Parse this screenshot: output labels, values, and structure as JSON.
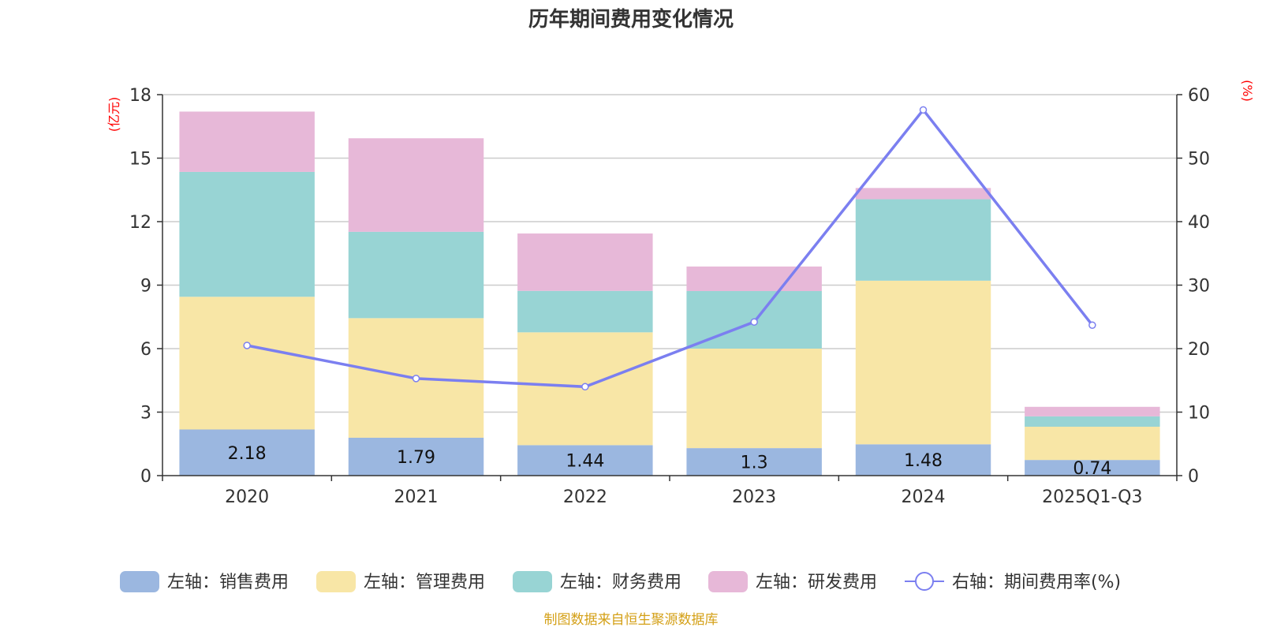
{
  "chart_data": {
    "type": "bar",
    "title": "历年期间费用变化情况",
    "categories": [
      "2020",
      "2021",
      "2022",
      "2023",
      "2024",
      "2025Q1-Q3"
    ],
    "left_axis": {
      "unit": "(亿元)",
      "ylim": [
        0,
        18
      ],
      "ticks": [
        0,
        3,
        6,
        9,
        12,
        15,
        18
      ]
    },
    "right_axis": {
      "unit": "(%)",
      "ylim": [
        0,
        60
      ],
      "ticks": [
        0,
        10,
        20,
        30,
        40,
        50,
        60
      ]
    },
    "series": [
      {
        "name": "左轴：销售费用",
        "kind": "bar",
        "color": "#9bb7e0",
        "values": [
          2.18,
          1.79,
          1.44,
          1.3,
          1.48,
          0.74
        ],
        "labels": [
          "2.18",
          "1.79",
          "1.44",
          "1.3",
          "1.48",
          "0.74"
        ]
      },
      {
        "name": "左轴：管理费用",
        "kind": "bar",
        "color": "#f8e6a6",
        "values": [
          6.27,
          5.65,
          5.33,
          4.7,
          7.73,
          1.57
        ]
      },
      {
        "name": "左轴：财务费用",
        "kind": "bar",
        "color": "#98d4d4",
        "values": [
          5.9,
          4.08,
          1.96,
          2.72,
          3.85,
          0.49
        ]
      },
      {
        "name": "左轴：研发费用",
        "kind": "bar",
        "color": "#e7b8d8",
        "values": [
          2.85,
          4.42,
          2.71,
          1.16,
          0.53,
          0.45
        ]
      },
      {
        "name": "右轴：期间费用率(%)",
        "kind": "line",
        "color": "#7b7ff0",
        "values": [
          20.5,
          15.3,
          14.0,
          24.2,
          57.6,
          23.7
        ]
      }
    ],
    "grid": true,
    "legend_position": "bottom"
  },
  "source": "制图数据来自恒生聚源数据库"
}
